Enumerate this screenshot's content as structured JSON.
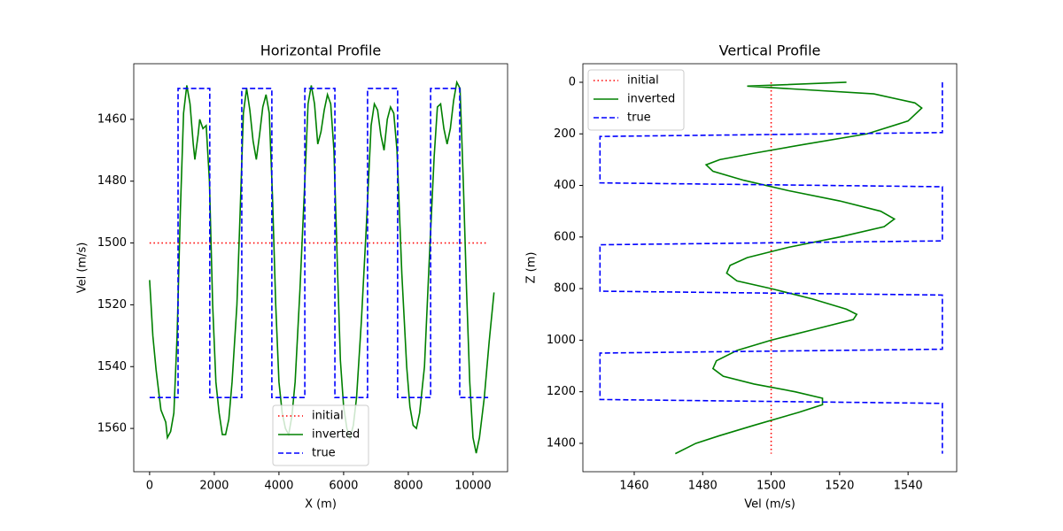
{
  "chart_data": [
    {
      "type": "line",
      "title": "Horizontal Profile",
      "x_label": "X    (m)",
      "y_label": "Vel    (m/s)",
      "xlim": [
        -490,
        11070
      ],
      "ylim": [
        1442,
        1574
      ],
      "y_inverted": true,
      "xticks": [
        0,
        2000,
        4000,
        6000,
        8000,
        10000
      ],
      "yticks": [
        1460,
        1480,
        1500,
        1520,
        1540,
        1560
      ],
      "legend": "lower center",
      "series": [
        {
          "name": "initial",
          "color": "#ff0000",
          "linestyle": "dotted",
          "x": [
            0,
            10470
          ],
          "values": [
            1500,
            1500
          ]
        },
        {
          "name": "inverted",
          "color": "#008000",
          "linestyle": "solid",
          "x": [
            0,
            100,
            200,
            350,
            500,
            550,
            650,
            750,
            850,
            950,
            1050,
            1150,
            1250,
            1350,
            1400,
            1500,
            1550,
            1650,
            1750,
            1850,
            1950,
            2050,
            2150,
            2250,
            2350,
            2450,
            2550,
            2700,
            2800,
            2900,
            3000,
            3100,
            3200,
            3300,
            3400,
            3500,
            3600,
            3700,
            3800,
            3900,
            4000,
            4100,
            4200,
            4300,
            4400,
            4500,
            4650,
            4800,
            4900,
            5000,
            5100,
            5200,
            5300,
            5400,
            5500,
            5600,
            5700,
            5800,
            5900,
            6000,
            6100,
            6200,
            6300,
            6400,
            6550,
            6700,
            6850,
            6950,
            7050,
            7150,
            7250,
            7350,
            7450,
            7550,
            7650,
            7800,
            7950,
            8050,
            8150,
            8250,
            8350,
            8500,
            8650,
            8800,
            8900,
            9000,
            9100,
            9200,
            9300,
            9400,
            9500,
            9600,
            9700,
            9800,
            9900,
            10000,
            10100,
            10200,
            10350,
            10500,
            10650
          ],
          "values": [
            1512,
            1530,
            1541,
            1554,
            1558,
            1563,
            1561,
            1555,
            1530,
            1490,
            1458,
            1449,
            1455,
            1468,
            1473,
            1465,
            1460,
            1463,
            1462,
            1480,
            1520,
            1545,
            1555,
            1562,
            1562,
            1557,
            1545,
            1520,
            1490,
            1458,
            1450,
            1457,
            1467,
            1473,
            1465,
            1456,
            1452,
            1458,
            1485,
            1520,
            1545,
            1555,
            1560,
            1562,
            1556,
            1545,
            1515,
            1480,
            1455,
            1449,
            1455,
            1468,
            1464,
            1457,
            1452,
            1455,
            1470,
            1505,
            1538,
            1553,
            1560,
            1563,
            1559,
            1550,
            1525,
            1495,
            1462,
            1455,
            1457,
            1465,
            1470,
            1460,
            1456,
            1458,
            1470,
            1510,
            1540,
            1553,
            1559,
            1560,
            1555,
            1540,
            1505,
            1472,
            1456,
            1455,
            1463,
            1468,
            1463,
            1454,
            1448,
            1450,
            1480,
            1515,
            1545,
            1563,
            1568,
            1563,
            1550,
            1532,
            1516
          ]
        },
        {
          "name": "true",
          "color": "#0000ff",
          "linestyle": "dashed",
          "x": [
            0,
            880,
            880,
            1860,
            1860,
            2850,
            2850,
            3780,
            3780,
            4800,
            4800,
            5730,
            5730,
            6740,
            6740,
            7670,
            7670,
            8690,
            8690,
            9590,
            9590,
            10470
          ],
          "values": [
            1550,
            1550,
            1450,
            1450,
            1550,
            1550,
            1450,
            1450,
            1550,
            1550,
            1450,
            1450,
            1550,
            1550,
            1450,
            1450,
            1550,
            1550,
            1450,
            1450,
            1550,
            1550
          ]
        }
      ]
    },
    {
      "type": "line",
      "title": "Vertical Profile",
      "x_label": "Vel    (m/s)",
      "y_label": "Z    (m)",
      "xlim": [
        1445,
        1554.2
      ],
      "ylim": [
        -72,
        1510
      ],
      "y_inverted": true,
      "xticks": [
        1460,
        1480,
        1500,
        1520,
        1540
      ],
      "yticks": [
        0,
        200,
        400,
        600,
        800,
        1000,
        1200,
        1400
      ],
      "legend": "upper left",
      "series": [
        {
          "name": "initial",
          "color": "#ff0000",
          "linestyle": "dotted",
          "x": [
            1500,
            1500
          ],
          "values": [
            0,
            1440
          ]
        },
        {
          "name": "inverted",
          "color": "#008000",
          "linestyle": "solid",
          "x": [
            1522,
            1493,
            1530,
            1542,
            1544,
            1540,
            1528,
            1510,
            1495,
            1485,
            1481,
            1483,
            1492,
            1505,
            1520,
            1532,
            1536,
            1533,
            1520,
            1505,
            1493,
            1488,
            1487,
            1490,
            1500,
            1512,
            1522,
            1525,
            1524,
            1512,
            1500,
            1490,
            1484,
            1483,
            1486,
            1495,
            1507,
            1515,
            1515,
            1508,
            1495,
            1485,
            1478,
            1472
          ],
          "values": [
            0,
            15,
            45,
            80,
            100,
            150,
            200,
            240,
            275,
            300,
            320,
            345,
            380,
            420,
            460,
            500,
            530,
            560,
            600,
            640,
            680,
            710,
            740,
            770,
            800,
            840,
            880,
            900,
            920,
            960,
            1000,
            1040,
            1080,
            1110,
            1140,
            1170,
            1200,
            1225,
            1250,
            1280,
            1330,
            1370,
            1400,
            1440
          ]
        },
        {
          "name": "true",
          "color": "#0000ff",
          "linestyle": "dashed",
          "x": [
            1550,
            1550,
            1450,
            1450,
            1550,
            1550,
            1450,
            1450,
            1550,
            1550,
            1450,
            1450,
            1550,
            1550
          ],
          "values": [
            0,
            195,
            210,
            390,
            405,
            615,
            630,
            810,
            825,
            1035,
            1050,
            1230,
            1245,
            1440
          ]
        }
      ]
    }
  ]
}
